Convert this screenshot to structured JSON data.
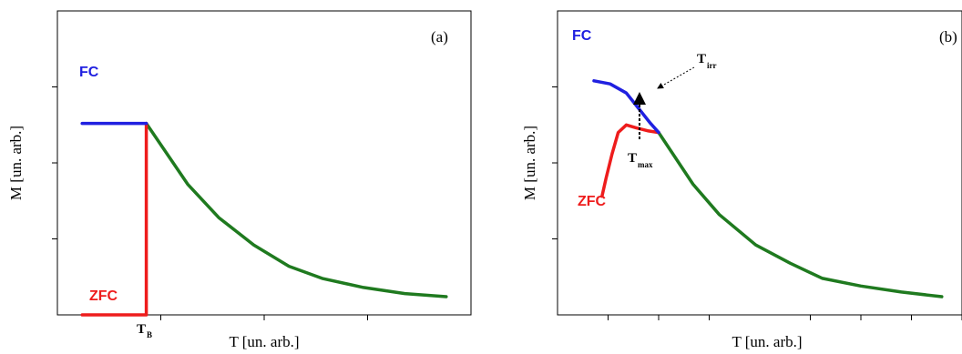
{
  "colors": {
    "fc": "#2020e0",
    "zfc": "#ee1c1c",
    "common": "#1f7a1f",
    "axis": "#000000"
  },
  "chart_data": [
    {
      "type": "line",
      "panel_label": "(a)",
      "xlabel": "T [un. arb.]",
      "ylabel": "M [un. arb.]",
      "xlim": [
        0,
        20
      ],
      "ylim": [
        0,
        10
      ],
      "x_tick_marks": [
        5,
        10,
        15
      ],
      "y_tick_marks": [
        2.5,
        5,
        7.5
      ],
      "annotations": [
        {
          "text": "T",
          "sub": "B",
          "x": 4.4
        }
      ],
      "series": [
        {
          "name": "FC",
          "role": "fc",
          "points": [
            [
              1.2,
              6.3
            ],
            [
              4.3,
              6.3
            ]
          ]
        },
        {
          "name": "ZFC",
          "role": "zfc",
          "points": [
            [
              1.2,
              0.0
            ],
            [
              4.3,
              0.0
            ],
            [
              4.3,
              6.3
            ]
          ]
        },
        {
          "name": "",
          "role": "common",
          "points": [
            [
              4.3,
              6.3
            ],
            [
              5.0,
              5.6
            ],
            [
              6.3,
              4.3
            ],
            [
              7.8,
              3.2
            ],
            [
              9.5,
              2.3
            ],
            [
              11.2,
              1.6
            ],
            [
              12.8,
              1.2
            ],
            [
              14.8,
              0.9
            ],
            [
              16.8,
              0.7
            ],
            [
              18.8,
              0.6
            ]
          ]
        }
      ]
    },
    {
      "type": "line",
      "panel_label": "(b)",
      "xlabel": "T [un. arb.]",
      "ylabel": "M [un. arb.]",
      "xlim": [
        0,
        20
      ],
      "ylim": [
        0,
        10
      ],
      "x_tick_marks": [
        2.5,
        5,
        7.5,
        12.5,
        15,
        17.5,
        20
      ],
      "y_tick_marks": [
        2.5,
        5,
        7.5
      ],
      "annotations": [
        {
          "text": "T",
          "sub": "irr",
          "x": 4.7,
          "y": 6.2
        },
        {
          "text": "T",
          "sub": "max",
          "x": 4.0,
          "y": 6.2
        }
      ],
      "series": [
        {
          "name": "FC",
          "role": "fc",
          "points": [
            [
              1.8,
              7.7
            ],
            [
              2.6,
              7.6
            ],
            [
              3.4,
              7.3
            ],
            [
              4.0,
              6.8
            ],
            [
              4.6,
              6.3
            ],
            [
              5.0,
              6.0
            ]
          ]
        },
        {
          "name": "ZFC",
          "role": "zfc",
          "points": [
            [
              2.2,
              3.9
            ],
            [
              2.4,
              4.5
            ],
            [
              2.7,
              5.3
            ],
            [
              3.0,
              6.0
            ],
            [
              3.4,
              6.25
            ],
            [
              3.9,
              6.15
            ],
            [
              4.5,
              6.05
            ],
            [
              5.0,
              6.0
            ]
          ]
        },
        {
          "name": "",
          "role": "common",
          "points": [
            [
              5.0,
              6.0
            ],
            [
              5.6,
              5.4
            ],
            [
              6.7,
              4.3
            ],
            [
              8.0,
              3.3
            ],
            [
              9.8,
              2.3
            ],
            [
              11.5,
              1.7
            ],
            [
              13.1,
              1.2
            ],
            [
              15.0,
              0.95
            ],
            [
              17.0,
              0.75
            ],
            [
              19.0,
              0.6
            ]
          ]
        }
      ]
    }
  ]
}
